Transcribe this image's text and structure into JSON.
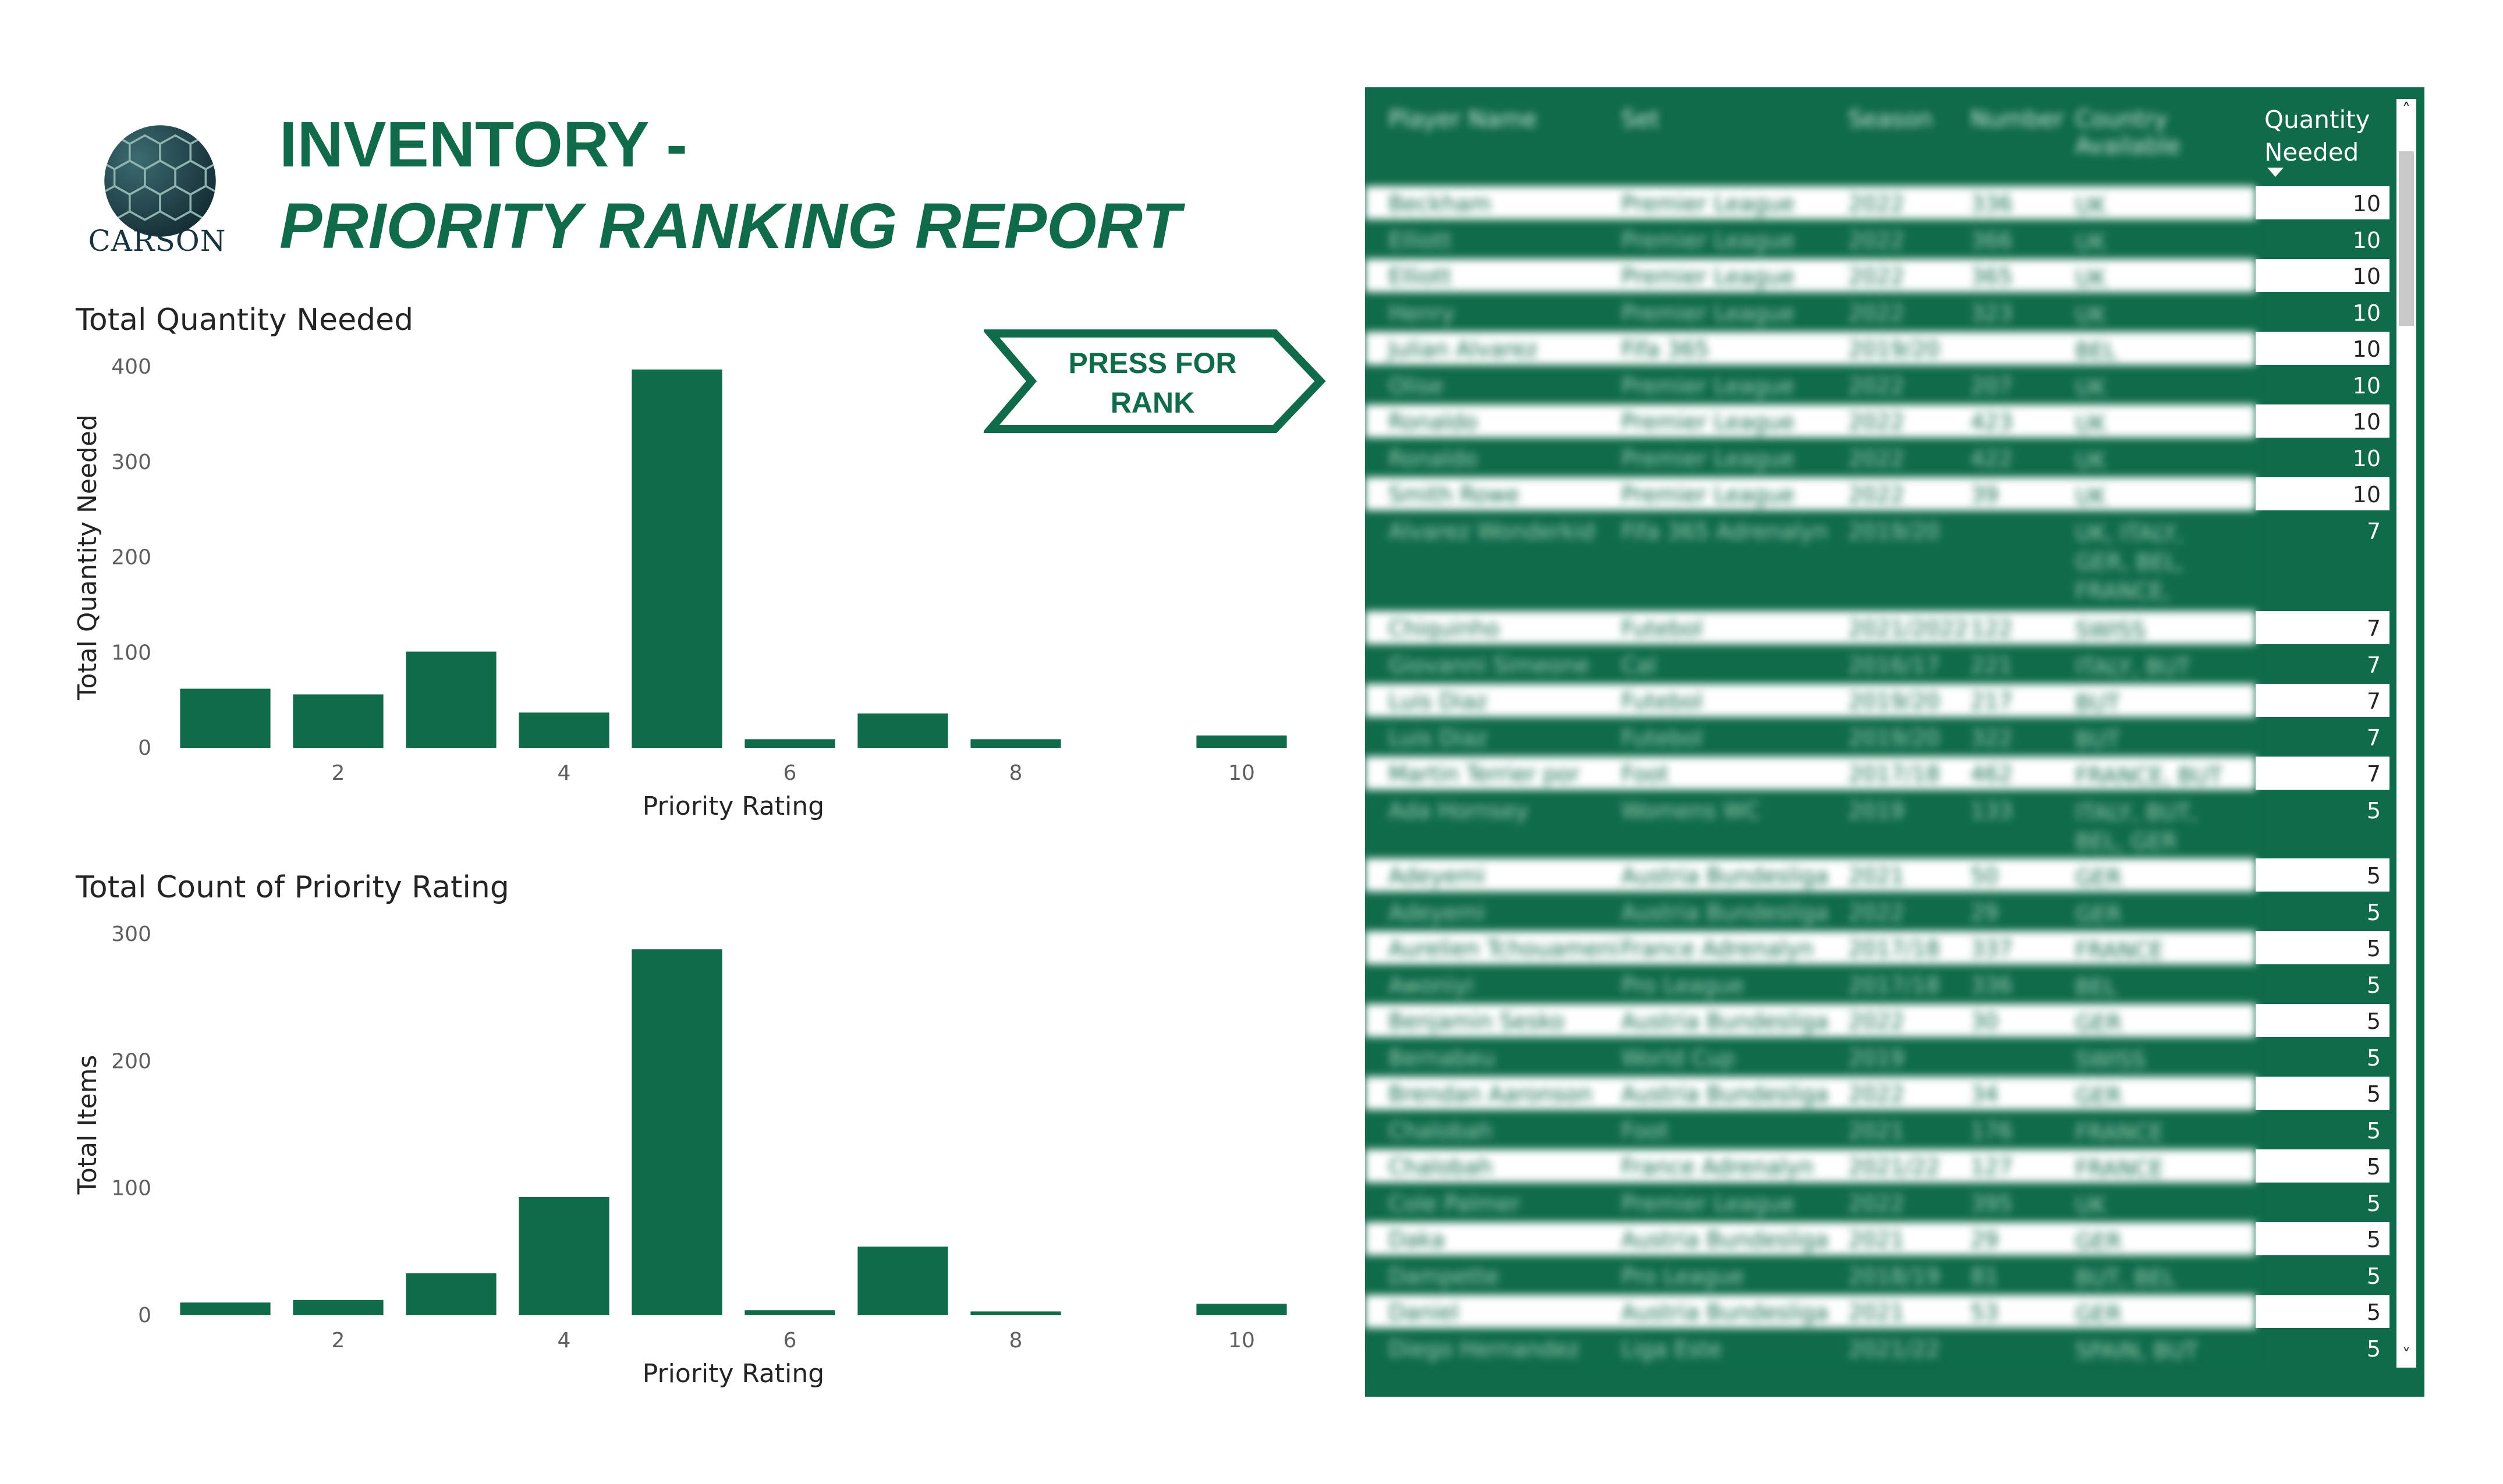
{
  "brand": {
    "name": "CARSON"
  },
  "title": {
    "line1": "INVENTORY -",
    "line2": "PRIORITY RANKING REPORT"
  },
  "colors": {
    "accent": "#106b48",
    "bar": "#106b48"
  },
  "button": {
    "label_line1": "PRESS FOR",
    "label_line2": "RANK"
  },
  "chart_data": [
    {
      "type": "bar",
      "title": "Total Quantity Needed",
      "xlabel": "Priority Rating",
      "ylabel": "Total Quantity Needed",
      "x": [
        1,
        2,
        3,
        4,
        5,
        6,
        7,
        8,
        10
      ],
      "values": [
        62,
        56,
        101,
        37,
        397,
        9,
        36,
        9,
        13
      ],
      "ylim": [
        0,
        400
      ],
      "yticks": [
        0,
        100,
        200,
        300,
        400
      ],
      "xticks": [
        2,
        4,
        6,
        8,
        10
      ],
      "grid": false
    },
    {
      "type": "bar",
      "title": "Total Count of Priority Rating",
      "xlabel": "Priority Rating",
      "ylabel": "Total Items",
      "x": [
        1,
        2,
        3,
        4,
        5,
        6,
        7,
        8,
        10
      ],
      "values": [
        10,
        12,
        33,
        93,
        288,
        4,
        54,
        3,
        9
      ],
      "ylim": [
        0,
        300
      ],
      "yticks": [
        0,
        100,
        200,
        300
      ],
      "xticks": [
        2,
        4,
        6,
        8,
        10
      ],
      "grid": false
    }
  ],
  "table": {
    "columns": [
      "Player Name",
      "Set",
      "Season",
      "Number",
      "Country Available",
      "Quantity Needed"
    ],
    "rows": [
      [
        "Beckham",
        "Premier League",
        "2022",
        "336",
        "UK",
        "10"
      ],
      [
        "Elliott",
        "Premier League",
        "2022",
        "366",
        "UK",
        "10"
      ],
      [
        "Elliott",
        "Premier League",
        "2022",
        "365",
        "UK",
        "10"
      ],
      [
        "Henry",
        "Premier League",
        "2022",
        "323",
        "UK",
        "10"
      ],
      [
        "Julian Alvarez",
        "Fifa 365",
        "2019/20",
        "",
        "BEL",
        "10"
      ],
      [
        "Olise",
        "Premier League",
        "2022",
        "207",
        "UK",
        "10"
      ],
      [
        "Ronaldo",
        "Premier League",
        "2022",
        "423",
        "UK",
        "10"
      ],
      [
        "Ronaldo",
        "Premier League",
        "2022",
        "422",
        "UK",
        "10"
      ],
      [
        "Smith Rowe",
        "Premier League",
        "2022",
        "39",
        "UK",
        "10"
      ],
      [
        "Alvarez Wonderkid",
        "Fifa 365 Adrenalyn",
        "2019/20",
        "",
        "UK, ITALY, GER, BEL, FRANCE, SPAIN",
        "7"
      ],
      [
        "Chiquinho",
        "Futebol",
        "2021/2022",
        "122",
        "SWISS",
        "7"
      ],
      [
        "Giovanni Simeone",
        "Cal",
        "2016/17",
        "221",
        "ITALY, BUT",
        "7"
      ],
      [
        "Luis Diaz",
        "Futebol",
        "2019/20",
        "217",
        "BUT",
        "7"
      ],
      [
        "Luis Diaz",
        "Futebol",
        "2019/20",
        "322",
        "BUT",
        "7"
      ],
      [
        "Martin Terrier por",
        "Foot",
        "2017/18",
        "462",
        "FRANCE, BUT",
        "7"
      ],
      [
        "Ada Hornsey",
        "Womens WC",
        "2019",
        "133",
        "ITALY, BUT, BEL, GER",
        "5"
      ],
      [
        "Adeyemi",
        "Austria Bundesliga",
        "2021",
        "50",
        "GER",
        "5"
      ],
      [
        "Adeyemi",
        "Austria Bundesliga",
        "2022",
        "29",
        "GER",
        "5"
      ],
      [
        "Aurelien Tchouameni",
        "France Adrenalyn",
        "2017/18",
        "337",
        "FRANCE",
        "5"
      ],
      [
        "Awoniyi",
        "Pro League",
        "2017/18",
        "336",
        "BEL",
        "5"
      ],
      [
        "Benjamin Sesko",
        "Austria Bundesliga",
        "2022",
        "30",
        "GER",
        "5"
      ],
      [
        "Bernabeu",
        "World Cup",
        "2019",
        "",
        "SWISS",
        "5"
      ],
      [
        "Brendan Aaronson",
        "Austria Bundesliga",
        "2022",
        "34",
        "GER",
        "5"
      ],
      [
        "Chalobah",
        "Foot",
        "2021",
        "176",
        "FRANCE",
        "5"
      ],
      [
        "Chalobah",
        "France Adrenalyn",
        "2021/22",
        "127",
        "FRANCE",
        "5"
      ],
      [
        "Cole Palmer",
        "Premier League",
        "2022",
        "395",
        "UK",
        "5"
      ],
      [
        "Daka",
        "Austria Bundesliga",
        "2021",
        "29",
        "GER",
        "5"
      ],
      [
        "Dampette",
        "Pro League",
        "2018/19",
        "81",
        "BUT, BEL",
        "5"
      ],
      [
        "Daniel",
        "Austria Bundesliga",
        "2021",
        "53",
        "GER",
        "5"
      ],
      [
        "Diego Hernandez",
        "Liga Este",
        "2021/22",
        "",
        "SPAIN, BUT",
        "5"
      ]
    ]
  }
}
